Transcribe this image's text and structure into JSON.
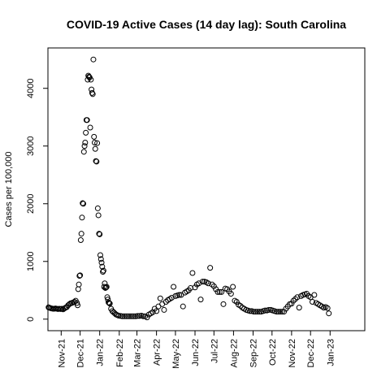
{
  "chart_data": {
    "type": "scatter",
    "title": "COVID-19 Active Cases (14 day lag): South Carolina",
    "xlabel": "",
    "ylabel": "Cases per 100,000",
    "x_type": "date",
    "xlim": [
      "2021-10-11",
      "2023-02-25"
    ],
    "ylim": [
      -200,
      4700
    ],
    "y_ticks": [
      0,
      1000,
      2000,
      3000,
      4000
    ],
    "x_ticks": [
      {
        "date": "2021-11-01",
        "label": "Nov-21"
      },
      {
        "date": "2021-12-01",
        "label": "Dec-21"
      },
      {
        "date": "2022-01-01",
        "label": "Jan-22"
      },
      {
        "date": "2022-02-01",
        "label": "Feb-22"
      },
      {
        "date": "2022-03-01",
        "label": "Mar-22"
      },
      {
        "date": "2022-04-01",
        "label": "Apr-22"
      },
      {
        "date": "2022-05-01",
        "label": "May-22"
      },
      {
        "date": "2022-06-01",
        "label": "Jun-22"
      },
      {
        "date": "2022-07-01",
        "label": "Jul-22"
      },
      {
        "date": "2022-08-01",
        "label": "Aug-22"
      },
      {
        "date": "2022-09-01",
        "label": "Sep-22"
      },
      {
        "date": "2022-10-01",
        "label": "Oct-22"
      },
      {
        "date": "2022-11-01",
        "label": "Nov-22"
      },
      {
        "date": "2022-12-01",
        "label": "Dec-22"
      },
      {
        "date": "2023-01-01",
        "label": "Jan-23"
      }
    ],
    "points": [
      [
        "2021-10-12",
        205
      ],
      [
        "2021-10-13",
        200
      ],
      [
        "2021-10-15",
        190
      ],
      [
        "2021-10-17",
        185
      ],
      [
        "2021-10-19",
        180
      ],
      [
        "2021-10-21",
        180
      ],
      [
        "2021-10-23",
        185
      ],
      [
        "2021-10-25",
        180
      ],
      [
        "2021-10-27",
        175
      ],
      [
        "2021-10-29",
        180
      ],
      [
        "2021-10-31",
        175
      ],
      [
        "2021-11-02",
        180
      ],
      [
        "2021-11-04",
        170
      ],
      [
        "2021-11-06",
        185
      ],
      [
        "2021-11-08",
        200
      ],
      [
        "2021-11-10",
        210
      ],
      [
        "2021-11-12",
        240
      ],
      [
        "2021-11-14",
        260
      ],
      [
        "2021-11-16",
        275
      ],
      [
        "2021-11-18",
        280
      ],
      [
        "2021-11-20",
        290
      ],
      [
        "2021-11-22",
        300
      ],
      [
        "2021-11-24",
        320
      ],
      [
        "2021-11-26",
        280
      ],
      [
        "2021-11-27",
        240
      ],
      [
        "2021-11-28",
        520
      ],
      [
        "2021-11-29",
        600
      ],
      [
        "2021-11-30",
        750
      ],
      [
        "2021-12-01",
        760
      ],
      [
        "2021-12-02",
        1370
      ],
      [
        "2021-12-03",
        1480
      ],
      [
        "2021-12-04",
        1760
      ],
      [
        "2021-12-05",
        2010
      ],
      [
        "2021-12-06",
        2000
      ],
      [
        "2021-12-07",
        2900
      ],
      [
        "2021-12-08",
        3000
      ],
      [
        "2021-12-09",
        3060
      ],
      [
        "2021-12-10",
        3230
      ],
      [
        "2021-12-11",
        3450
      ],
      [
        "2021-12-12",
        3450
      ],
      [
        "2021-12-13",
        4150
      ],
      [
        "2021-12-14",
        4220
      ],
      [
        "2021-12-15",
        4200
      ],
      [
        "2021-12-16",
        4190
      ],
      [
        "2021-12-17",
        3320
      ],
      [
        "2021-12-18",
        4150
      ],
      [
        "2021-12-19",
        3980
      ],
      [
        "2021-12-20",
        3920
      ],
      [
        "2021-12-21",
        3900
      ],
      [
        "2021-12-22",
        4500
      ],
      [
        "2021-12-23",
        3160
      ],
      [
        "2021-12-24",
        3060
      ],
      [
        "2021-12-25",
        2950
      ],
      [
        "2021-12-26",
        2740
      ],
      [
        "2021-12-27",
        2730
      ],
      [
        "2021-12-28",
        3050
      ],
      [
        "2021-12-29",
        1920
      ],
      [
        "2021-12-30",
        1800
      ],
      [
        "2021-12-31",
        1480
      ],
      [
        "2022-01-01",
        1470
      ],
      [
        "2022-01-02",
        1110
      ],
      [
        "2022-01-03",
        1040
      ],
      [
        "2022-01-04",
        980
      ],
      [
        "2022-01-05",
        910
      ],
      [
        "2022-01-06",
        820
      ],
      [
        "2022-01-07",
        840
      ],
      [
        "2022-01-08",
        560
      ],
      [
        "2022-01-09",
        620
      ],
      [
        "2022-01-10",
        540
      ],
      [
        "2022-01-11",
        550
      ],
      [
        "2022-01-12",
        560
      ],
      [
        "2022-01-13",
        380
      ],
      [
        "2022-01-14",
        340
      ],
      [
        "2022-01-15",
        290
      ],
      [
        "2022-01-16",
        280
      ],
      [
        "2022-01-17",
        270
      ],
      [
        "2022-01-19",
        180
      ],
      [
        "2022-01-21",
        140
      ],
      [
        "2022-01-23",
        120
      ],
      [
        "2022-01-25",
        100
      ],
      [
        "2022-01-27",
        80
      ],
      [
        "2022-01-29",
        70
      ],
      [
        "2022-01-31",
        60
      ],
      [
        "2022-02-03",
        55
      ],
      [
        "2022-02-06",
        50
      ],
      [
        "2022-02-09",
        50
      ],
      [
        "2022-02-12",
        50
      ],
      [
        "2022-02-15",
        50
      ],
      [
        "2022-02-18",
        50
      ],
      [
        "2022-02-21",
        50
      ],
      [
        "2022-02-24",
        50
      ],
      [
        "2022-02-27",
        50
      ],
      [
        "2022-03-02",
        55
      ],
      [
        "2022-03-05",
        55
      ],
      [
        "2022-03-08",
        60
      ],
      [
        "2022-03-11",
        50
      ],
      [
        "2022-03-14",
        50
      ],
      [
        "2022-03-17",
        30
      ],
      [
        "2022-03-20",
        80
      ],
      [
        "2022-03-23",
        100
      ],
      [
        "2022-03-26",
        120
      ],
      [
        "2022-03-29",
        180
      ],
      [
        "2022-04-01",
        140
      ],
      [
        "2022-04-04",
        220
      ],
      [
        "2022-04-07",
        360
      ],
      [
        "2022-04-10",
        260
      ],
      [
        "2022-04-13",
        160
      ],
      [
        "2022-04-16",
        300
      ],
      [
        "2022-04-19",
        330
      ],
      [
        "2022-04-22",
        350
      ],
      [
        "2022-04-25",
        370
      ],
      [
        "2022-04-28",
        560
      ],
      [
        "2022-05-01",
        400
      ],
      [
        "2022-05-04",
        410
      ],
      [
        "2022-05-07",
        420
      ],
      [
        "2022-05-10",
        420
      ],
      [
        "2022-05-13",
        220
      ],
      [
        "2022-05-16",
        460
      ],
      [
        "2022-05-19",
        480
      ],
      [
        "2022-05-22",
        500
      ],
      [
        "2022-05-25",
        540
      ],
      [
        "2022-05-28",
        800
      ],
      [
        "2022-06-01",
        550
      ],
      [
        "2022-06-04",
        600
      ],
      [
        "2022-06-07",
        620
      ],
      [
        "2022-06-10",
        340
      ],
      [
        "2022-06-13",
        650
      ],
      [
        "2022-06-16",
        650
      ],
      [
        "2022-06-19",
        640
      ],
      [
        "2022-06-22",
        620
      ],
      [
        "2022-06-25",
        890
      ],
      [
        "2022-06-28",
        600
      ],
      [
        "2022-07-01",
        570
      ],
      [
        "2022-07-04",
        520
      ],
      [
        "2022-07-07",
        470
      ],
      [
        "2022-07-10",
        470
      ],
      [
        "2022-07-13",
        470
      ],
      [
        "2022-07-16",
        260
      ],
      [
        "2022-07-19",
        530
      ],
      [
        "2022-07-22",
        520
      ],
      [
        "2022-07-25",
        480
      ],
      [
        "2022-07-28",
        440
      ],
      [
        "2022-07-31",
        560
      ],
      [
        "2022-08-03",
        320
      ],
      [
        "2022-08-06",
        300
      ],
      [
        "2022-08-09",
        250
      ],
      [
        "2022-08-12",
        230
      ],
      [
        "2022-08-15",
        200
      ],
      [
        "2022-08-18",
        180
      ],
      [
        "2022-08-21",
        160
      ],
      [
        "2022-08-24",
        150
      ],
      [
        "2022-08-27",
        140
      ],
      [
        "2022-08-30",
        140
      ],
      [
        "2022-09-02",
        130
      ],
      [
        "2022-09-05",
        130
      ],
      [
        "2022-09-08",
        130
      ],
      [
        "2022-09-11",
        130
      ],
      [
        "2022-09-14",
        130
      ],
      [
        "2022-09-17",
        140
      ],
      [
        "2022-09-20",
        150
      ],
      [
        "2022-09-23",
        150
      ],
      [
        "2022-09-26",
        160
      ],
      [
        "2022-09-29",
        160
      ],
      [
        "2022-10-02",
        150
      ],
      [
        "2022-10-05",
        140
      ],
      [
        "2022-10-08",
        130
      ],
      [
        "2022-10-11",
        130
      ],
      [
        "2022-10-14",
        130
      ],
      [
        "2022-10-17",
        130
      ],
      [
        "2022-10-20",
        130
      ],
      [
        "2022-10-23",
        180
      ],
      [
        "2022-10-26",
        220
      ],
      [
        "2022-10-29",
        260
      ],
      [
        "2022-11-01",
        270
      ],
      [
        "2022-11-04",
        320
      ],
      [
        "2022-11-07",
        350
      ],
      [
        "2022-11-10",
        380
      ],
      [
        "2022-11-13",
        200
      ],
      [
        "2022-11-16",
        400
      ],
      [
        "2022-11-19",
        420
      ],
      [
        "2022-11-22",
        430
      ],
      [
        "2022-11-25",
        440
      ],
      [
        "2022-11-28",
        400
      ],
      [
        "2022-12-01",
        380
      ],
      [
        "2022-12-04",
        300
      ],
      [
        "2022-12-07",
        420
      ],
      [
        "2022-12-10",
        280
      ],
      [
        "2022-12-13",
        260
      ],
      [
        "2022-12-16",
        240
      ],
      [
        "2022-12-19",
        220
      ],
      [
        "2022-12-22",
        200
      ],
      [
        "2022-12-25",
        210
      ],
      [
        "2022-12-28",
        190
      ],
      [
        "2022-12-30",
        100
      ]
    ]
  }
}
